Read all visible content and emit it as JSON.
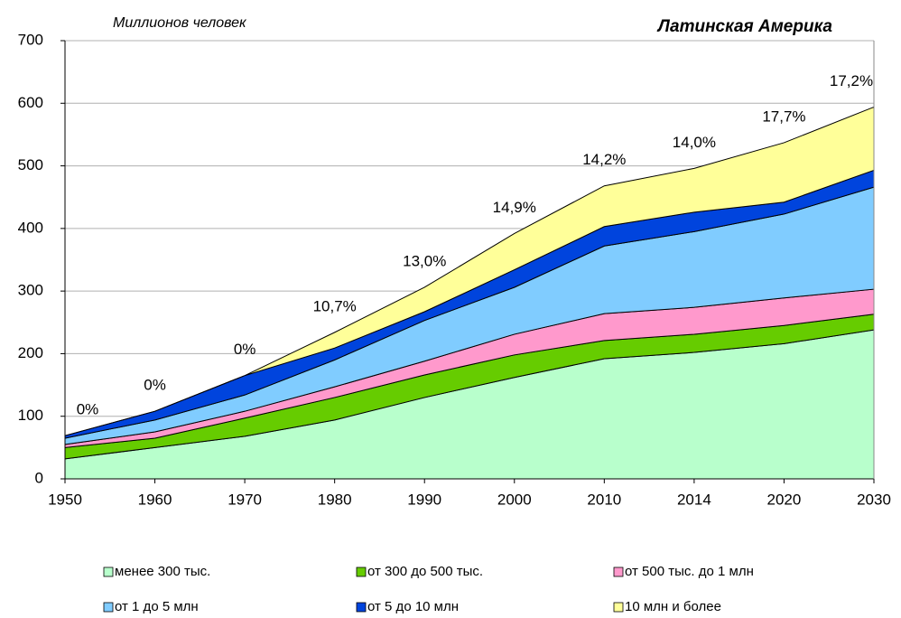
{
  "chart_data": {
    "type": "stacked_area",
    "title": "Латинская Америка",
    "subtitle": "Миллионов человек",
    "categories": [
      "1950",
      "1960",
      "1970",
      "1980",
      "1990",
      "2000",
      "2010",
      "2014",
      "2020",
      "2030"
    ],
    "series": [
      {
        "name": "менее 300 тыс.",
        "color": "#b8ffcc",
        "values": [
          32,
          50,
          68,
          94,
          130,
          162,
          192,
          202,
          216,
          238
        ]
      },
      {
        "name": "от 300 до 500 тыс.",
        "color": "#66cc00",
        "values": [
          18,
          15,
          29,
          36,
          36,
          36,
          29,
          29,
          29,
          25
        ]
      },
      {
        "name": "от 500 тыс. до 1 млн",
        "color": "#ff99cc",
        "values": [
          5,
          10,
          11,
          17,
          22,
          33,
          43,
          43,
          44,
          40
        ]
      },
      {
        "name": "от 1 до 5 млн",
        "color": "#80ccff",
        "values": [
          10,
          19,
          26,
          43,
          65,
          75,
          108,
          121,
          134,
          163
        ]
      },
      {
        "name": "от 5 до 10 млн",
        "color": "#0044dd",
        "values": [
          4,
          14,
          31,
          19,
          14,
          28,
          31,
          31,
          19,
          27
        ]
      },
      {
        "name": "10 млн и более",
        "color": "#ffff99",
        "values": [
          0,
          0,
          0,
          25,
          39,
          58,
          65,
          70,
          95,
          101
        ]
      }
    ],
    "annotations": [
      "0%",
      "0%",
      "0%",
      "10,7%",
      "13,0%",
      "14,9%",
      "14,2%",
      "14,0%",
      "17,7%",
      "17,2%"
    ],
    "ylim": [
      0,
      700
    ],
    "yticks": [
      0,
      100,
      200,
      300,
      400,
      500,
      600,
      700
    ],
    "grid": true
  }
}
